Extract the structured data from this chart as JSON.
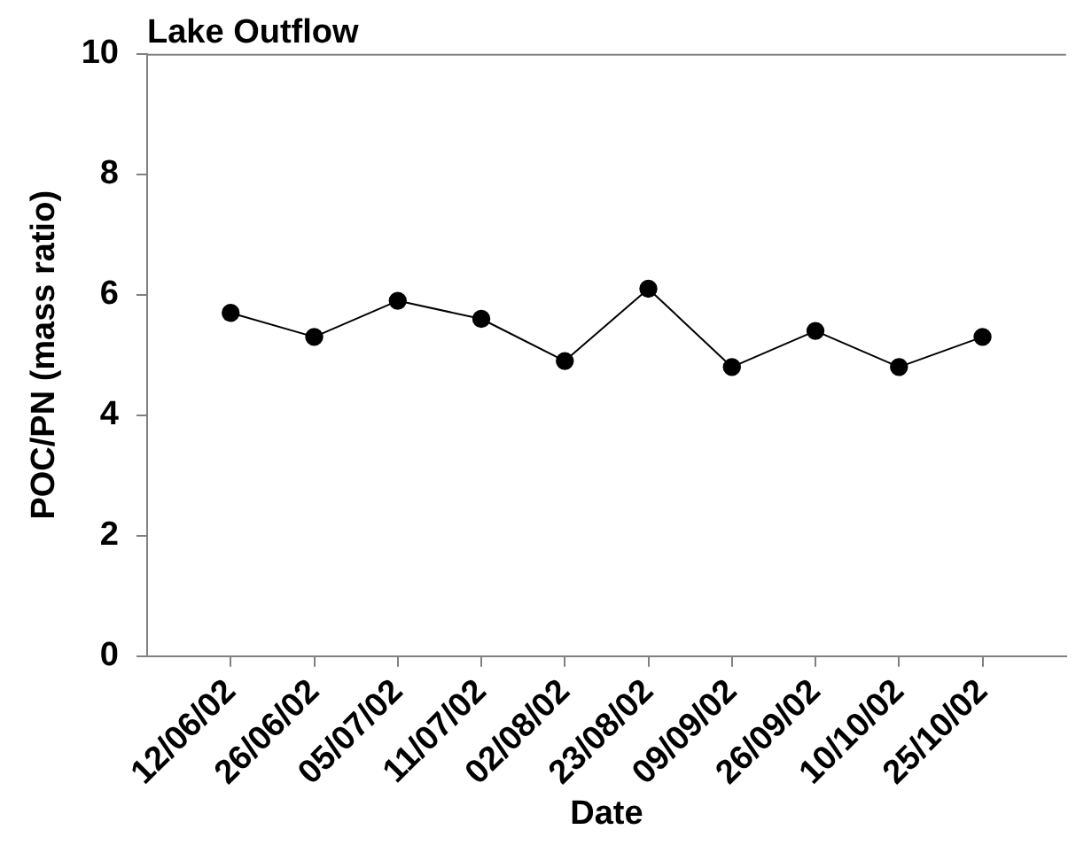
{
  "chart_data": {
    "type": "line",
    "title": "Lake Outflow",
    "xlabel": "Date",
    "ylabel": "POC/PN (mass ratio)",
    "categories": [
      "12/06/02",
      "26/06/02",
      "05/07/02",
      "11/07/02",
      "02/08/02",
      "23/08/02",
      "09/09/02",
      "26/09/02",
      "10/10/02",
      "25/10/02"
    ],
    "series": [
      {
        "color": "#000000",
        "values": [
          5.7,
          5.3,
          5.9,
          5.6,
          4.9,
          6.1,
          4.8,
          5.4,
          4.8,
          5.3
        ]
      }
    ],
    "ylim": [
      0,
      10
    ],
    "yticks": [
      0,
      2,
      4,
      6,
      8,
      10
    ],
    "marker": "circle",
    "line_style": "solid"
  }
}
